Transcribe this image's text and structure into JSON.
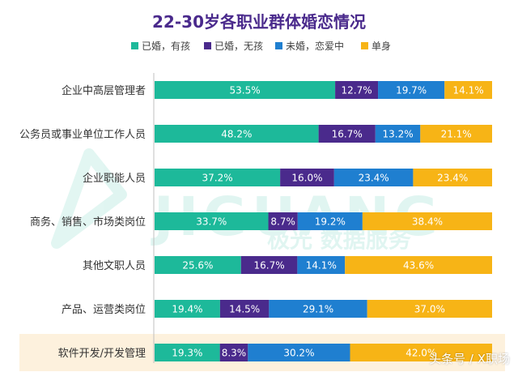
{
  "chart_data": {
    "type": "bar",
    "orientation": "horizontal",
    "stacked": true,
    "title": "22-30岁各职业群体婚恋情况",
    "categories": [
      "企业中高层管理者",
      "公务员或事业单位工作人员",
      "企业职能人员",
      "商务、销售、市场类岗位",
      "其他文职人员",
      "产品、运营类岗位",
      "软件开发/开发管理"
    ],
    "series": [
      {
        "name": "已婚，有孩",
        "color": "#1db99a",
        "values": [
          53.5,
          48.2,
          37.2,
          33.7,
          25.6,
          19.4,
          19.3
        ],
        "labels": [
          "53.5%",
          "48.2%",
          "37.2%",
          "33.7%",
          "25.6%",
          "19.4%",
          "19.3%"
        ]
      },
      {
        "name": "已婚，无孩",
        "color": "#4a2a8c",
        "values": [
          12.7,
          16.7,
          16.0,
          8.7,
          16.7,
          14.5,
          8.3
        ],
        "labels": [
          "12.7%",
          "16.7%",
          "16.0%",
          "8.7%",
          "16.7%",
          "14.5%",
          "8.3%"
        ]
      },
      {
        "name": "未婚，恋爱中",
        "color": "#1f7fd0",
        "values": [
          19.7,
          13.2,
          23.4,
          19.2,
          14.1,
          29.1,
          30.2
        ],
        "labels": [
          "19.7%",
          "13.2%",
          "23.4%",
          "19.2%",
          "14.1%",
          "29.1%",
          "30.2%"
        ]
      },
      {
        "name": "单身",
        "color": "#f7b416",
        "values": [
          14.1,
          21.1,
          23.4,
          38.4,
          43.6,
          37.0,
          42.0
        ],
        "labels": [
          "14.1%",
          "21.1%",
          "23.4%",
          "38.4%",
          "43.6%",
          "37.0%",
          "42.0%"
        ]
      }
    ],
    "highlight_category": "软件开发/开发管理",
    "highlight_color": "#fdf1dd",
    "legend_position": "top",
    "grid": false
  },
  "watermark": {
    "logo_text": "JIGUANG",
    "subtitle": "极光 数据服务",
    "corner_text": "头条号 / X职场"
  }
}
